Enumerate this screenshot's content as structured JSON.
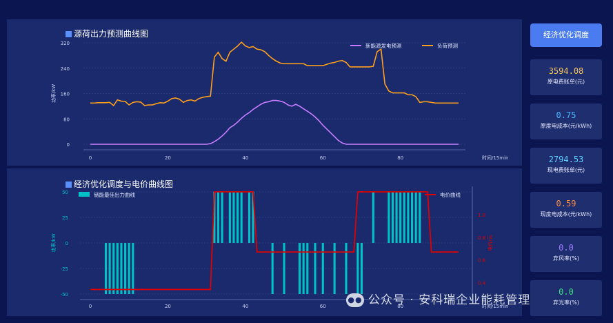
{
  "top_chart": {
    "title": "源荷出力预测曲线图",
    "legend": [
      "新能源发电预测",
      "负荷预测"
    ],
    "y_axis_label": "功率/kW",
    "x_axis_label": "时间/15min"
  },
  "bottom_chart": {
    "title": "经济优化调度与电价曲线图",
    "legend": [
      "储能最佳出力曲线",
      "电价曲线"
    ],
    "y_axis_label": "功率/kW",
    "y2_axis_label": "电价/元",
    "x_axis_label": "时间/15min"
  },
  "sidebar": {
    "button_label": "经济优化调度",
    "cards": [
      {
        "value": "3594.08",
        "label": "原电费账单(元)",
        "color": "#f4c25b"
      },
      {
        "value": "0.75",
        "label": "原度电成本(元/kWh)",
        "color": "#4db8ff"
      },
      {
        "value": "2794.53",
        "label": "现电费账单(元)",
        "color": "#5fd0ff"
      },
      {
        "value": "0.59",
        "label": "现度电成本(元/kWh)",
        "color": "#ff8c42"
      },
      {
        "value": "0.0",
        "label": "弃风率(%)",
        "color": "#9b7bff"
      },
      {
        "value": "0.0",
        "label": "弃光率(%)",
        "color": "#3ddc84"
      }
    ]
  },
  "watermark": "公众号 · 安科瑞企业能耗管理",
  "chart_data": [
    {
      "type": "line",
      "title": "源荷出力预测曲线图",
      "xlabel": "时间/15min",
      "ylabel": "功率/kW",
      "xlim": [
        0,
        95
      ],
      "ylim": [
        0,
        320
      ],
      "yticks": [
        0,
        80,
        160,
        240,
        320
      ],
      "xticks": [
        0,
        20,
        40,
        60,
        80
      ],
      "grid": true,
      "legend_position": "top-right",
      "x": [
        0,
        1,
        2,
        3,
        4,
        5,
        6,
        7,
        8,
        9,
        10,
        11,
        12,
        13,
        14,
        15,
        16,
        17,
        18,
        19,
        20,
        21,
        22,
        23,
        24,
        25,
        26,
        27,
        28,
        29,
        30,
        31,
        32,
        33,
        34,
        35,
        36,
        37,
        38,
        39,
        40,
        41,
        42,
        43,
        44,
        45,
        46,
        47,
        48,
        49,
        50,
        51,
        52,
        53,
        54,
        55,
        56,
        57,
        58,
        59,
        60,
        61,
        62,
        63,
        64,
        65,
        66,
        67,
        68,
        69,
        70,
        71,
        72,
        73,
        74,
        75,
        76,
        77,
        78,
        79,
        80,
        81,
        82,
        83,
        84,
        85,
        86,
        87,
        88,
        89,
        90,
        91,
        92,
        93,
        94,
        95
      ],
      "series": [
        {
          "name": "新能源发电预测",
          "color": "#c77dff",
          "values": [
            0,
            0,
            0,
            0,
            0,
            0,
            0,
            0,
            0,
            0,
            0,
            0,
            0,
            0,
            0,
            0,
            0,
            0,
            0,
            0,
            0,
            0,
            0,
            0,
            0,
            0,
            0,
            0,
            0,
            0,
            0,
            2,
            8,
            16,
            26,
            38,
            52,
            60,
            70,
            82,
            92,
            100,
            110,
            118,
            126,
            132,
            134,
            138,
            138,
            136,
            132,
            124,
            120,
            126,
            120,
            112,
            104,
            96,
            86,
            74,
            60,
            48,
            36,
            24,
            12,
            4,
            0,
            0,
            0,
            0,
            0,
            0,
            0,
            0,
            0,
            0,
            0,
            0,
            0,
            0,
            0,
            0,
            0,
            0,
            0,
            0,
            0,
            0,
            0,
            0,
            0,
            0,
            0,
            0,
            0,
            0
          ]
        },
        {
          "name": "负荷预测",
          "color": "#ff9f1c",
          "values": [
            130,
            130,
            131,
            131,
            131,
            132,
            122,
            140,
            136,
            135,
            124,
            132,
            134,
            133,
            122,
            124,
            124,
            128,
            131,
            130,
            136,
            144,
            146,
            142,
            132,
            138,
            140,
            136,
            144,
            148,
            150,
            152,
            275,
            290,
            270,
            262,
            290,
            300,
            310,
            322,
            310,
            305,
            308,
            300,
            298,
            292,
            280,
            270,
            262,
            256,
            254,
            254,
            254,
            254,
            254,
            254,
            248,
            248,
            248,
            248,
            248,
            252,
            256,
            258,
            262,
            264,
            258,
            244,
            244,
            244,
            244,
            244,
            244,
            246,
            292,
            300,
            190,
            168,
            162,
            162,
            162,
            162,
            156,
            156,
            150,
            132,
            134,
            134,
            132,
            130,
            130,
            130,
            130,
            130,
            130,
            130
          ]
        }
      ]
    },
    {
      "type": "bar",
      "title": "经济优化调度与电价曲线图",
      "xlabel": "时间/15min",
      "ylabel": "功率/kW",
      "y2label": "电价/元",
      "xlim": [
        0,
        95
      ],
      "ylim": [
        -50,
        50
      ],
      "y2lim": [
        0.3,
        1.2
      ],
      "yticks": [
        -50,
        -25,
        0,
        25,
        50
      ],
      "y2ticks": [
        0.4,
        0.6,
        0.8,
        1.0
      ],
      "xticks": [
        0,
        20,
        40,
        60,
        80
      ],
      "grid": true,
      "legend_position": "top",
      "series": [
        {
          "name": "储能最佳出力曲线",
          "color": "#00c2c7",
          "kind": "bar",
          "points": [
            [
              4,
              -50
            ],
            [
              5,
              -50
            ],
            [
              6,
              -50
            ],
            [
              7,
              -50
            ],
            [
              8,
              -50
            ],
            [
              9,
              -50
            ],
            [
              10,
              -50
            ],
            [
              11,
              -50
            ],
            [
              32,
              50
            ],
            [
              33,
              50
            ],
            [
              34,
              50
            ],
            [
              36,
              50
            ],
            [
              37,
              50
            ],
            [
              38,
              50
            ],
            [
              39,
              50
            ],
            [
              41,
              50
            ],
            [
              42,
              50
            ],
            [
              47,
              -50
            ],
            [
              50,
              -50
            ],
            [
              54,
              -50
            ],
            [
              55,
              -50
            ],
            [
              56,
              -50
            ],
            [
              58,
              -50
            ],
            [
              60,
              -50
            ],
            [
              63,
              -50
            ],
            [
              66,
              -50
            ],
            [
              69,
              -50
            ],
            [
              70,
              -50
            ],
            [
              73,
              50
            ],
            [
              77,
              50
            ],
            [
              78,
              50
            ],
            [
              79,
              50
            ],
            [
              80,
              50
            ],
            [
              81,
              50
            ],
            [
              82,
              50
            ],
            [
              83,
              50
            ],
            [
              84,
              50
            ],
            [
              85,
              50
            ]
          ]
        },
        {
          "name": "电价曲线",
          "color": "#e00000",
          "kind": "line",
          "axis": "y2",
          "points": [
            [
              0,
              0.34
            ],
            [
              15,
              0.34
            ],
            [
              31,
              0.34
            ],
            [
              32,
              1.2
            ],
            [
              42,
              1.2
            ],
            [
              43,
              0.67
            ],
            [
              68,
              0.67
            ],
            [
              69,
              1.2
            ],
            [
              87,
              1.2
            ],
            [
              88,
              0.67
            ],
            [
              95,
              0.67
            ]
          ]
        }
      ]
    }
  ]
}
